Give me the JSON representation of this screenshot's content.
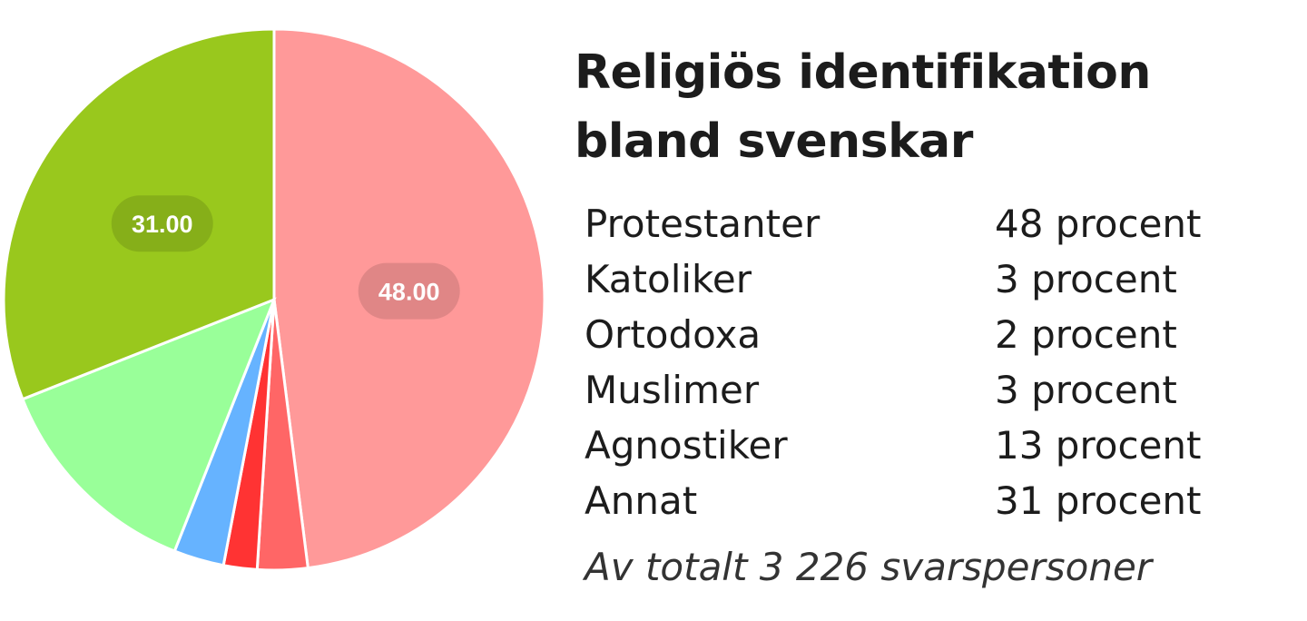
{
  "chart_data": {
    "type": "pie",
    "title": "Religiös identifikation bland svenskar",
    "categories": [
      "Protestanter",
      "Katoliker",
      "Ortodoxa",
      "Muslimer",
      "Agnostiker",
      "Annat"
    ],
    "values": [
      48,
      3,
      2,
      3,
      13,
      31
    ],
    "colors": [
      "#ff9999",
      "#ff6666",
      "#ff3333",
      "#66b3ff",
      "#99ff99",
      "#99c81d"
    ],
    "data_labels": [
      "48.00",
      "",
      "",
      "",
      "",
      "31.00"
    ],
    "legend": [
      {
        "name": "Protestanter",
        "value": "48 procent"
      },
      {
        "name": "Katoliker",
        "value": "3 procent"
      },
      {
        "name": "Ortodoxa",
        "value": "2 procent"
      },
      {
        "name": "Muslimer",
        "value": "3 procent"
      },
      {
        "name": "Agnostiker",
        "value": "13 procent"
      },
      {
        "name": "Annat",
        "value": "31 procent"
      }
    ],
    "legend_placement": "right",
    "start_angle_deg": 90,
    "direction": "clockwise",
    "note": "Av totalt 3 226 svarspersoner"
  }
}
